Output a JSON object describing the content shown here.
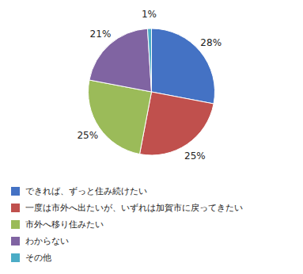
{
  "chart_data": {
    "type": "pie",
    "categories": [
      "できれば、ずっと住み続けたい",
      "一度は市外へ出たいが、いずれは加賀市に戻ってきたい",
      "市外へ移り住みたい",
      "わからない",
      "その他"
    ],
    "values": [
      28,
      25,
      25,
      21,
      1
    ],
    "value_labels": [
      "28%",
      "25%",
      "25%",
      "21%",
      "1%"
    ],
    "colors": [
      "#4472C4",
      "#C0504D",
      "#9BBB59",
      "#8064A2",
      "#4BACC6"
    ],
    "data_labels": true,
    "legend": "lower left"
  }
}
